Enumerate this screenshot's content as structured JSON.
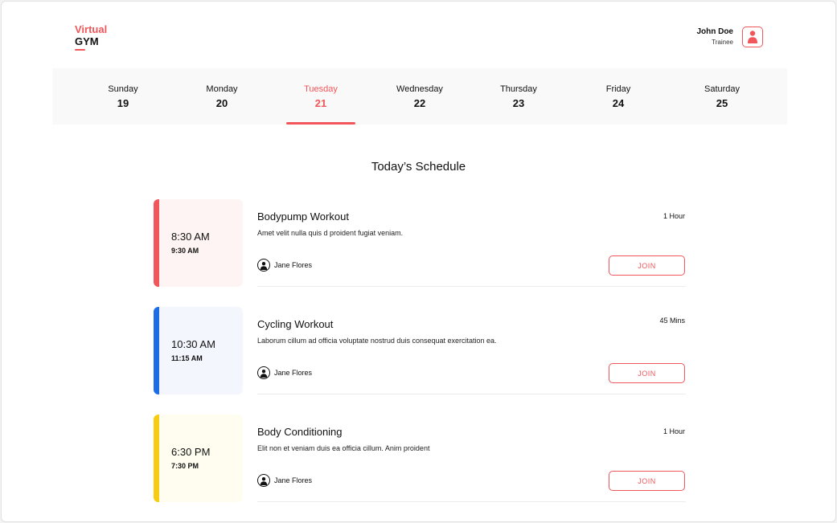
{
  "brand": {
    "line1": "Virtual",
    "line2": "GYM"
  },
  "user": {
    "name": "John Doe",
    "role": "Trainee",
    "avatar_icon": "user-avatar-icon"
  },
  "colors": {
    "accent": "#f0565a",
    "red_card_bg": "#fff4f4",
    "blue_accent": "#1e6de6",
    "blue_card_bg": "#f3f6fd",
    "yellow_accent": "#f7cc12",
    "yellow_card_bg": "#fffdf0"
  },
  "days": [
    {
      "name": "Sunday",
      "date": "19",
      "active": false
    },
    {
      "name": "Monday",
      "date": "20",
      "active": false
    },
    {
      "name": "Tuesday",
      "date": "21",
      "active": true
    },
    {
      "name": "Wednesday",
      "date": "22",
      "active": false
    },
    {
      "name": "Thursday",
      "date": "23",
      "active": false
    },
    {
      "name": "Friday",
      "date": "24",
      "active": false
    },
    {
      "name": "Saturday",
      "date": "25",
      "active": false
    }
  ],
  "schedule": {
    "title": "Today’s Schedule",
    "items": [
      {
        "start": "8:30 AM",
        "end": "9:30 AM",
        "title": "Bodypump Workout",
        "duration": "1 Hour",
        "description": "Amet velit nulla quis d proident fugiat veniam.",
        "trainer": "Jane Flores",
        "action": "JOIN"
      },
      {
        "start": "10:30 AM",
        "end": "11:15 AM",
        "title": "Cycling Workout",
        "duration": "45 Mins",
        "description": "Laborum cillum ad officia voluptate nostrud duis consequat exercitation ea.",
        "trainer": "Jane Flores",
        "action": "JOIN"
      },
      {
        "start": "6:30 PM",
        "end": "7:30 PM",
        "title": "Body Conditioning",
        "duration": "1 Hour",
        "description": "Elit non et veniam duis ea officia cillum. Anim proident",
        "trainer": "Jane Flores",
        "action": "JOIN"
      }
    ]
  }
}
